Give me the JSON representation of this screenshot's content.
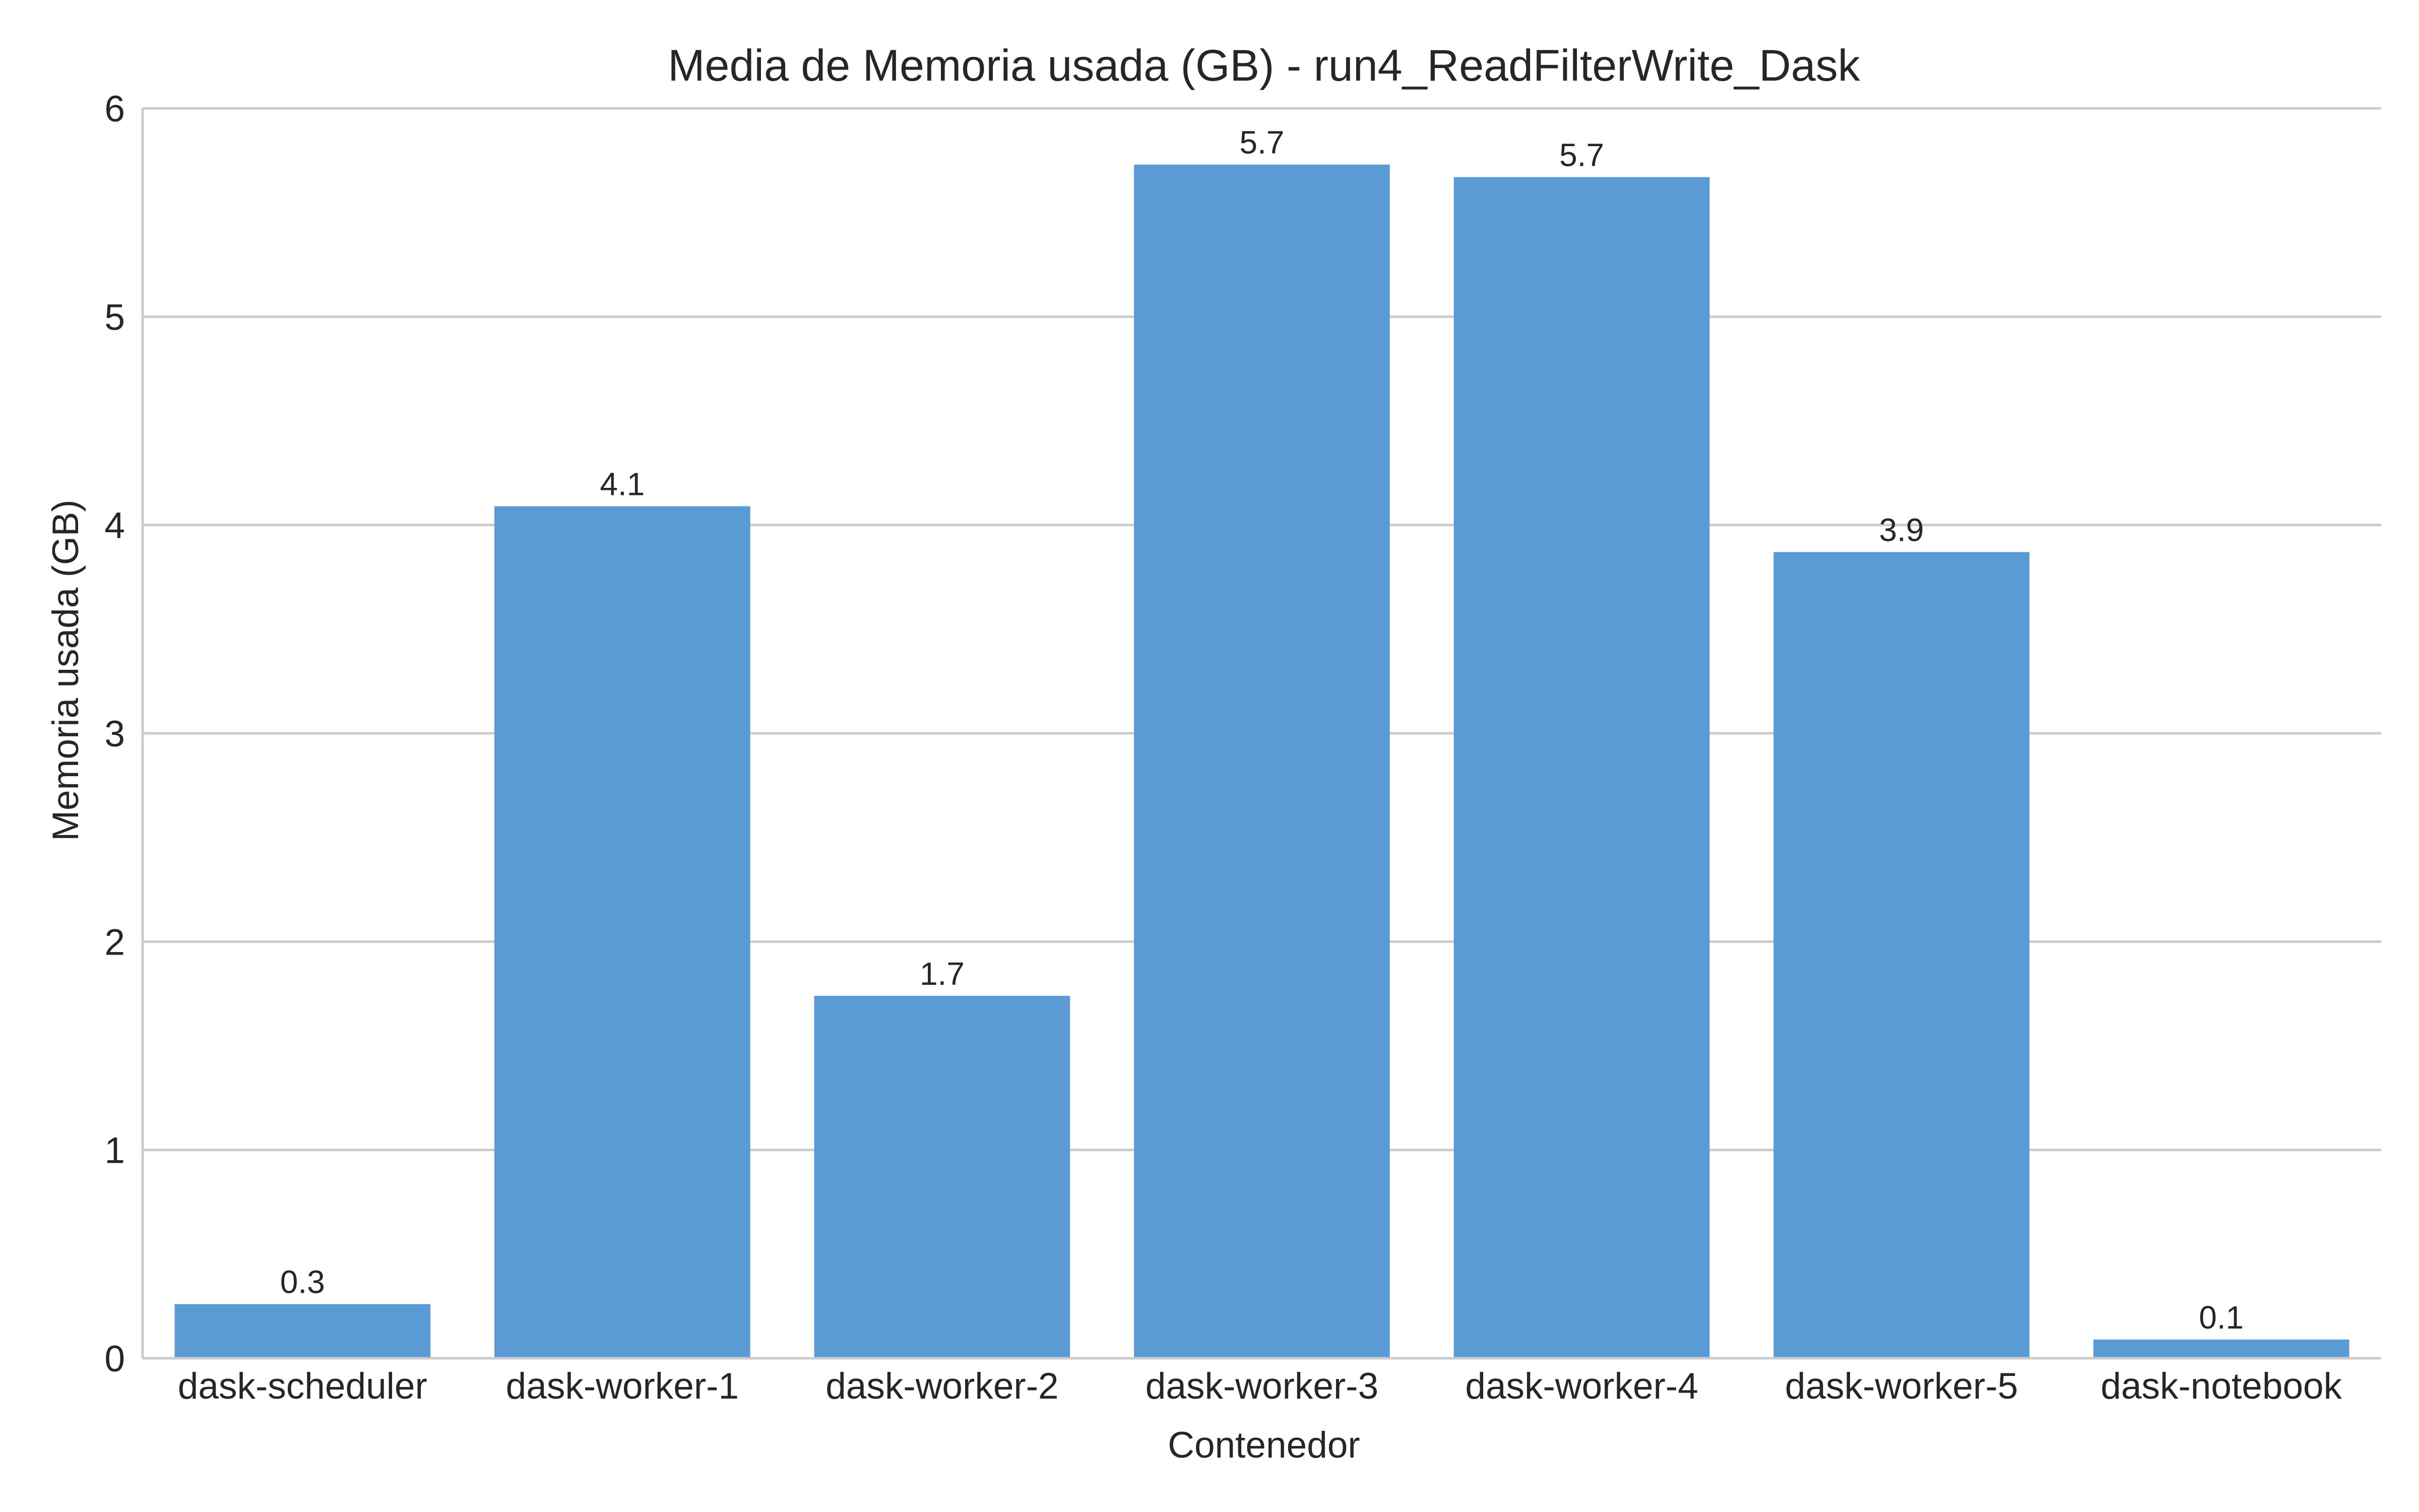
{
  "chart_data": {
    "type": "bar",
    "title": "Media de Memoria usada (GB) - run4_ReadFilterWrite_Dask",
    "xlabel": "Contenedor",
    "ylabel": "Memoria usada (GB)",
    "categories": [
      "dask-scheduler",
      "dask-worker-1",
      "dask-worker-2",
      "dask-worker-3",
      "dask-worker-4",
      "dask-worker-5",
      "dask-notebook"
    ],
    "values": [
      0.26,
      4.09,
      1.74,
      5.73,
      5.67,
      3.87,
      0.09
    ],
    "data_labels": [
      "0.3",
      "4.1",
      "1.7",
      "5.7",
      "5.7",
      "3.9",
      "0.1"
    ],
    "ylim": [
      0,
      6
    ],
    "yticks": [
      0,
      1,
      2,
      3,
      4,
      5,
      6
    ],
    "grid": "horizontal",
    "bar_color": "#5b9bd5"
  }
}
